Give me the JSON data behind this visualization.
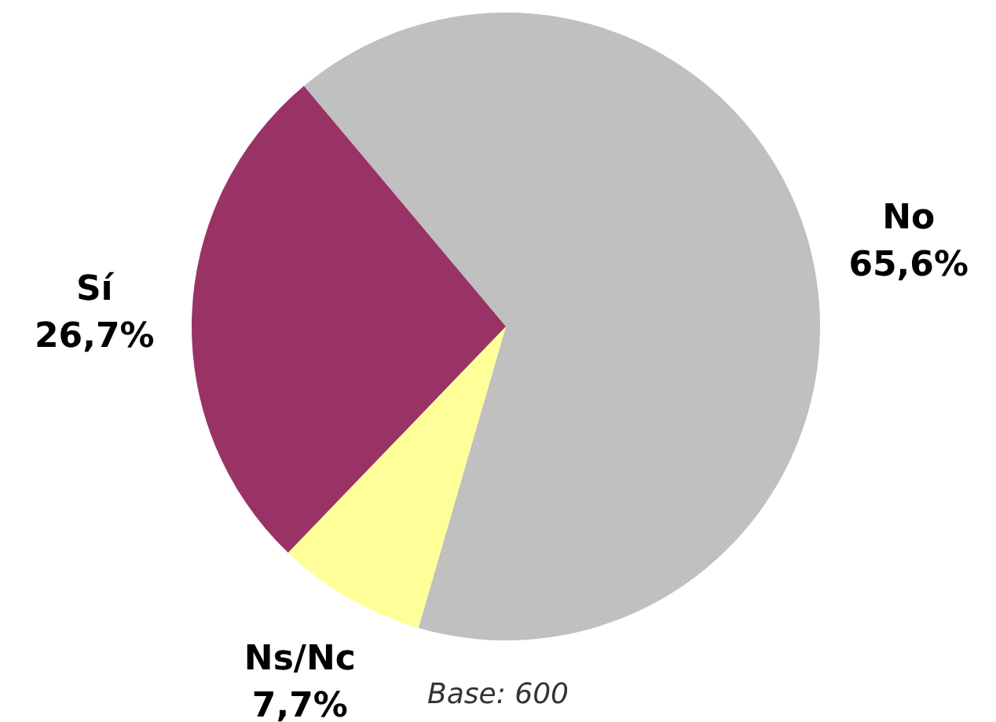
{
  "chart_data": {
    "type": "pie",
    "categories": [
      "No",
      "Ns/Nc",
      "Sí"
    ],
    "values": [
      65.6,
      7.7,
      26.7
    ],
    "colors": [
      "#c0c0c0",
      "#ffff99",
      "#993366"
    ],
    "value_labels": [
      "65,6%",
      "7,7%",
      "26,7%"
    ],
    "annotations": [
      "Base: 600"
    ],
    "legend": false
  }
}
